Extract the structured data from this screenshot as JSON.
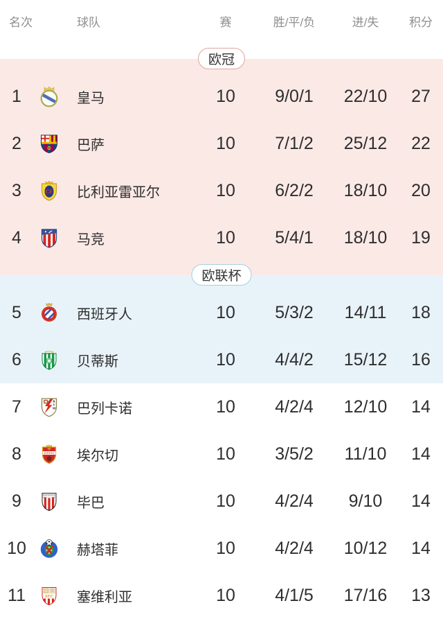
{
  "columns": {
    "rank": "名次",
    "team": "球队",
    "played": "赛",
    "wdl": "胜/平/负",
    "goals": "进/失",
    "points": "积分"
  },
  "sections": [
    {
      "id": "ucl",
      "badge": {
        "label": "欧冠",
        "border": "#dfa69e"
      },
      "bg": "#fbe9e6",
      "rows": [
        {
          "rank": "1",
          "team": "皇马",
          "logo": "real-madrid-logo",
          "played": "10",
          "wdl": "9/0/1",
          "goals": "22/10",
          "points": "27"
        },
        {
          "rank": "2",
          "team": "巴萨",
          "logo": "barcelona-logo",
          "played": "10",
          "wdl": "7/1/2",
          "goals": "25/12",
          "points": "22"
        },
        {
          "rank": "3",
          "team": "比利亚雷亚尔",
          "logo": "villarreal-logo",
          "played": "10",
          "wdl": "6/2/2",
          "goals": "18/10",
          "points": "20"
        },
        {
          "rank": "4",
          "team": "马竞",
          "logo": "atletico-madrid-logo",
          "played": "10",
          "wdl": "5/4/1",
          "goals": "18/10",
          "points": "19"
        }
      ]
    },
    {
      "id": "uel",
      "badge": {
        "label": "欧联杯",
        "border": "#a3cfe0"
      },
      "bg": "#e8f3f9",
      "rows": [
        {
          "rank": "5",
          "team": "西班牙人",
          "logo": "espanyol-logo",
          "played": "10",
          "wdl": "5/3/2",
          "goals": "14/11",
          "points": "18"
        },
        {
          "rank": "6",
          "team": "贝蒂斯",
          "logo": "betis-logo",
          "played": "10",
          "wdl": "4/4/2",
          "goals": "15/12",
          "points": "16"
        }
      ]
    },
    {
      "id": "rest",
      "badge": null,
      "bg": "#ffffff",
      "rows": [
        {
          "rank": "7",
          "team": "巴列卡诺",
          "logo": "rayo-vallecano-logo",
          "played": "10",
          "wdl": "4/2/4",
          "goals": "12/10",
          "points": "14"
        },
        {
          "rank": "8",
          "team": "埃尔切",
          "logo": "elche-logo",
          "played": "10",
          "wdl": "3/5/2",
          "goals": "11/10",
          "points": "14"
        },
        {
          "rank": "9",
          "team": "毕巴",
          "logo": "athletic-bilbao-logo",
          "played": "10",
          "wdl": "4/2/4",
          "goals": "9/10",
          "points": "14"
        },
        {
          "rank": "10",
          "team": "赫塔菲",
          "logo": "getafe-logo",
          "played": "10",
          "wdl": "4/2/4",
          "goals": "10/12",
          "points": "14"
        },
        {
          "rank": "11",
          "team": "塞维利亚",
          "logo": "sevilla-logo",
          "played": "10",
          "wdl": "4/1/5",
          "goals": "17/16",
          "points": "13"
        }
      ]
    }
  ],
  "colors": {
    "ucl_zone_bg": "#fbe9e6",
    "uel_zone_bg": "#e8f3f9",
    "header_text": "#8f8f8f",
    "body_text": "#2e2e2e",
    "ucl_badge_border": "#dfa69e",
    "uel_badge_border": "#a3cfe0"
  }
}
